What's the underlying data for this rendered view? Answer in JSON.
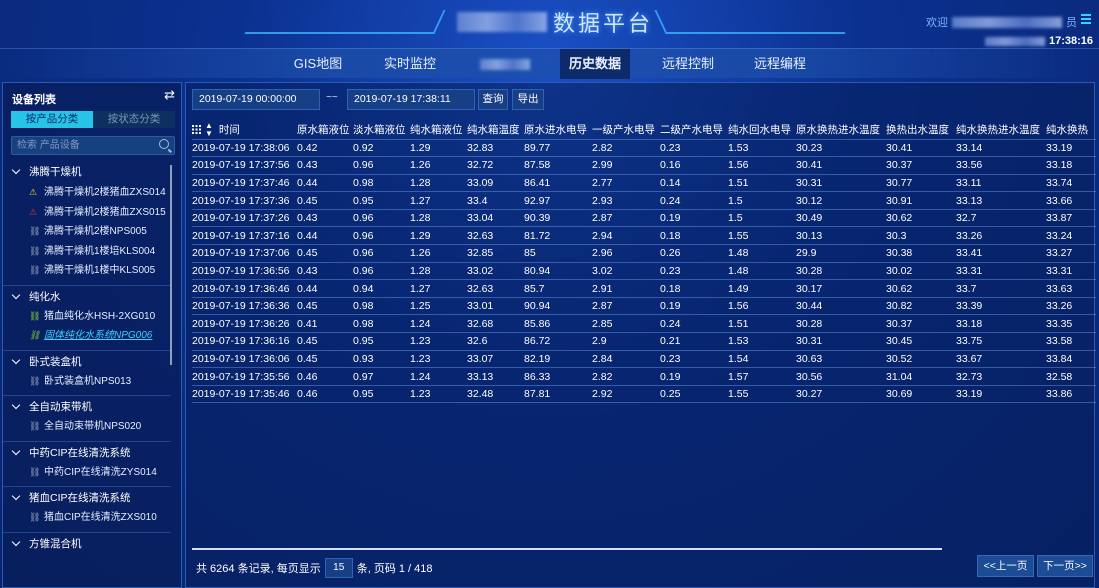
{
  "header": {
    "title": "数据平台",
    "welcome": "欢迎",
    "welcome_suffix": "员",
    "clock": "17:38:16"
  },
  "nav": {
    "tabs": [
      {
        "label": "GIS地图"
      },
      {
        "label": "实时监控"
      },
      {
        "label": ""
      },
      {
        "label": "历史数据",
        "active": true
      },
      {
        "label": "远程控制"
      },
      {
        "label": "远程编程"
      }
    ]
  },
  "sidebar": {
    "title": "设备列表",
    "seg": [
      "按产品分类",
      "按状态分类"
    ],
    "search_placeholder": "检索 产品设备",
    "groups": [
      {
        "label": "沸腾干燥机",
        "items": [
          {
            "label": "沸腾干燥机2楼猪血ZXS014",
            "icon": "warning-yellow"
          },
          {
            "label": "沸腾干燥机2楼猪血ZXS015",
            "icon": "warning-red"
          },
          {
            "label": "沸腾干燥机2楼NPS005",
            "icon": "link-broken"
          },
          {
            "label": "沸腾干燥机1楼培KLS004",
            "icon": "link-broken"
          },
          {
            "label": "沸腾干燥机1楼中KLS005",
            "icon": "link-broken"
          }
        ]
      },
      {
        "label": "纯化水",
        "items": [
          {
            "label": "猪血纯化水HSH-2XG010",
            "icon": "link-green"
          },
          {
            "label": "固体纯化水系统NPG006",
            "icon": "link-green",
            "selected": true
          }
        ]
      },
      {
        "label": "卧式装盒机",
        "items": [
          {
            "label": "卧式装盒机NPS013",
            "icon": "link-broken"
          }
        ]
      },
      {
        "label": "全自动束带机",
        "items": [
          {
            "label": "全自动束带机NPS020",
            "icon": "link-broken"
          }
        ]
      },
      {
        "label": "中药CIP在线清洗系统",
        "items": [
          {
            "label": "中药CIP在线清洗ZYS014",
            "icon": "link-broken"
          }
        ]
      },
      {
        "label": "猪血CIP在线清洗系统",
        "items": [
          {
            "label": "猪血CIP在线清洗ZXS010",
            "icon": "link-broken"
          }
        ]
      },
      {
        "label": "方锥混合机",
        "items": []
      }
    ]
  },
  "query": {
    "start": "2019-07-19 00:00:00",
    "separator": "~~",
    "end": "2019-07-19 17:38:11",
    "query_label": "查询",
    "export_label": "导出"
  },
  "table": {
    "columns": [
      "时间",
      "原水箱液位",
      "淡水箱液位",
      "纯水箱液位",
      "纯水箱温度",
      "原水进水电导",
      "一级产水电导",
      "二级产水电导",
      "纯水回水电导",
      "原水换热进水温度",
      "换热出水温度",
      "纯水换热进水温度",
      "纯水换热"
    ],
    "rows": [
      [
        "2019-07-19 17:38:06",
        "0.42",
        "0.92",
        "1.29",
        "32.83",
        "89.77",
        "2.82",
        "0.23",
        "1.53",
        "30.23",
        "30.41",
        "33.14",
        "33.19"
      ],
      [
        "2019-07-19 17:37:56",
        "0.43",
        "0.96",
        "1.26",
        "32.72",
        "87.58",
        "2.99",
        "0.16",
        "1.56",
        "30.41",
        "30.37",
        "33.56",
        "33.18"
      ],
      [
        "2019-07-19 17:37:46",
        "0.44",
        "0.98",
        "1.28",
        "33.09",
        "86.41",
        "2.77",
        "0.14",
        "1.51",
        "30.31",
        "30.77",
        "33.11",
        "33.74"
      ],
      [
        "2019-07-19 17:37:36",
        "0.45",
        "0.95",
        "1.27",
        "33.4",
        "92.97",
        "2.93",
        "0.24",
        "1.5",
        "30.12",
        "30.91",
        "33.13",
        "33.66"
      ],
      [
        "2019-07-19 17:37:26",
        "0.43",
        "0.96",
        "1.28",
        "33.04",
        "90.39",
        "2.87",
        "0.19",
        "1.5",
        "30.49",
        "30.62",
        "32.7",
        "33.87"
      ],
      [
        "2019-07-19 17:37:16",
        "0.44",
        "0.96",
        "1.29",
        "32.63",
        "81.72",
        "2.94",
        "0.18",
        "1.55",
        "30.13",
        "30.3",
        "33.26",
        "33.24"
      ],
      [
        "2019-07-19 17:37:06",
        "0.45",
        "0.96",
        "1.26",
        "32.85",
        "85",
        "2.96",
        "0.26",
        "1.48",
        "29.9",
        "30.38",
        "33.41",
        "33.27"
      ],
      [
        "2019-07-19 17:36:56",
        "0.43",
        "0.96",
        "1.28",
        "33.02",
        "80.94",
        "3.02",
        "0.23",
        "1.48",
        "30.28",
        "30.02",
        "33.31",
        "33.31"
      ],
      [
        "2019-07-19 17:36:46",
        "0.44",
        "0.94",
        "1.27",
        "32.63",
        "85.7",
        "2.91",
        "0.18",
        "1.49",
        "30.17",
        "30.62",
        "33.7",
        "33.63"
      ],
      [
        "2019-07-19 17:36:36",
        "0.45",
        "0.98",
        "1.25",
        "33.01",
        "90.94",
        "2.87",
        "0.19",
        "1.56",
        "30.44",
        "30.82",
        "33.39",
        "33.26"
      ],
      [
        "2019-07-19 17:36:26",
        "0.41",
        "0.98",
        "1.24",
        "32.68",
        "85.86",
        "2.85",
        "0.24",
        "1.51",
        "30.28",
        "30.37",
        "33.18",
        "33.35"
      ],
      [
        "2019-07-19 17:36:16",
        "0.45",
        "0.95",
        "1.23",
        "32.6",
        "86.72",
        "2.9",
        "0.21",
        "1.53",
        "30.31",
        "30.45",
        "33.75",
        "33.58"
      ],
      [
        "2019-07-19 17:36:06",
        "0.45",
        "0.93",
        "1.23",
        "33.07",
        "82.19",
        "2.84",
        "0.23",
        "1.54",
        "30.63",
        "30.52",
        "33.67",
        "33.84"
      ],
      [
        "2019-07-19 17:35:56",
        "0.46",
        "0.97",
        "1.24",
        "33.13",
        "86.33",
        "2.82",
        "0.19",
        "1.57",
        "30.56",
        "31.04",
        "32.73",
        "32.58"
      ],
      [
        "2019-07-19 17:35:46",
        "0.46",
        "0.95",
        "1.23",
        "32.48",
        "87.81",
        "2.92",
        "0.25",
        "1.55",
        "30.27",
        "30.69",
        "33.19",
        "33.86"
      ]
    ]
  },
  "footer": {
    "prefix": "共 6264 条记录, 每页显示",
    "page_size": "15",
    "suffix": "条, 页码 1 / 418",
    "prev": "<<上一页",
    "next": "下一页>>"
  },
  "colors": {
    "accent": "#27c4e8",
    "background": "#0a2a78",
    "selected_link": "#3ad0ff"
  }
}
